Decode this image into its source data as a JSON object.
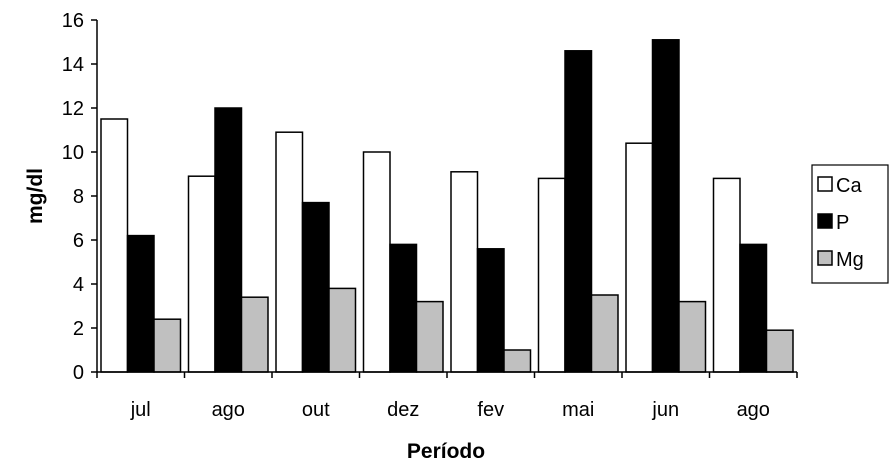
{
  "chart_data": {
    "type": "bar",
    "title": "",
    "xlabel": "Período",
    "ylabel": "mg/dl",
    "categories": [
      "jul",
      "ago",
      "out",
      "dez",
      "fev",
      "mai",
      "jun",
      "ago"
    ],
    "ylim": [
      0,
      16
    ],
    "yticks": [
      "0",
      "2",
      "4",
      "6",
      "8",
      "10",
      "12",
      "14",
      "16"
    ],
    "grid": false,
    "legend_position": "right",
    "series": [
      {
        "name": "Ca",
        "color": "#ffffff",
        "values": [
          11.5,
          8.9,
          10.9,
          10.0,
          9.1,
          8.8,
          10.4,
          8.8
        ]
      },
      {
        "name": "P",
        "color": "#000000",
        "values": [
          6.2,
          12.0,
          7.7,
          5.8,
          5.6,
          14.6,
          15.1,
          5.8
        ]
      },
      {
        "name": "Mg",
        "color": "#c0c0c0",
        "values": [
          2.4,
          3.4,
          3.8,
          3.2,
          1.0,
          3.5,
          3.2,
          1.9
        ]
      }
    ]
  }
}
